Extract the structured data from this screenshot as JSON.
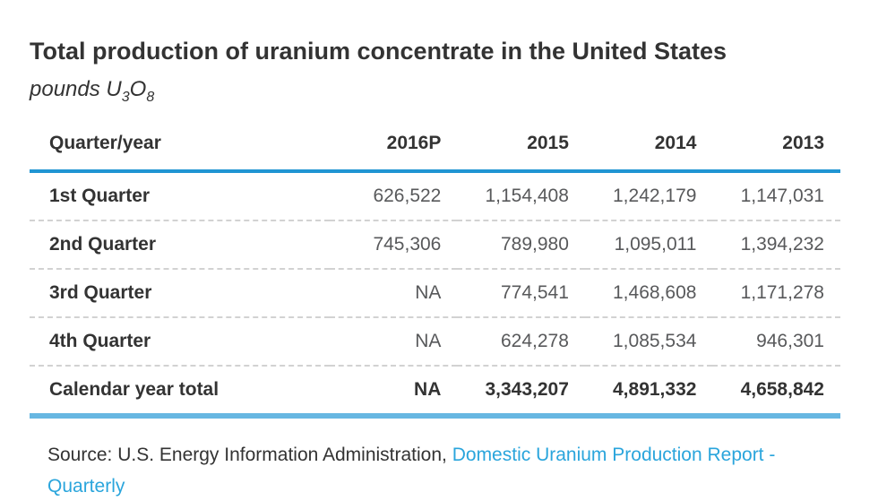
{
  "header": {
    "title": "Total production of uranium concentrate in the United States",
    "subtitle": {
      "prefix": "pounds U",
      "sub1": "3",
      "mid": "O",
      "sub2": "8"
    }
  },
  "table": {
    "columns": [
      "Quarter/year",
      "2016P",
      "2015",
      "2014",
      "2013"
    ],
    "rows": [
      {
        "label": "1st Quarter",
        "values": [
          "626,522",
          "1,154,408",
          "1,242,179",
          "1,147,031"
        ]
      },
      {
        "label": "2nd Quarter",
        "values": [
          "745,306",
          "789,980",
          "1,095,011",
          "1,394,232"
        ]
      },
      {
        "label": "3rd Quarter",
        "values": [
          "NA",
          "774,541",
          "1,468,608",
          "1,171,278"
        ]
      },
      {
        "label": "4th Quarter",
        "values": [
          "NA",
          "624,278",
          "1,085,534",
          "946,301"
        ]
      },
      {
        "label": "Calendar year total",
        "values": [
          "NA",
          "3,343,207",
          "4,891,332",
          "4,658,842"
        ]
      }
    ]
  },
  "source": {
    "prefix": "Source: U.S. Energy Information Administration, ",
    "link_label": "Domestic Uranium Production Report - Quarterly"
  },
  "colors": {
    "header_rule_blue": "#2095d3",
    "total_rule_blue": "#67b7e2",
    "link_blue": "#2aa5dc",
    "text_dark": "#333333",
    "text_value_gray": "#58595b",
    "row_divider_gray": "#d2d2d2"
  }
}
